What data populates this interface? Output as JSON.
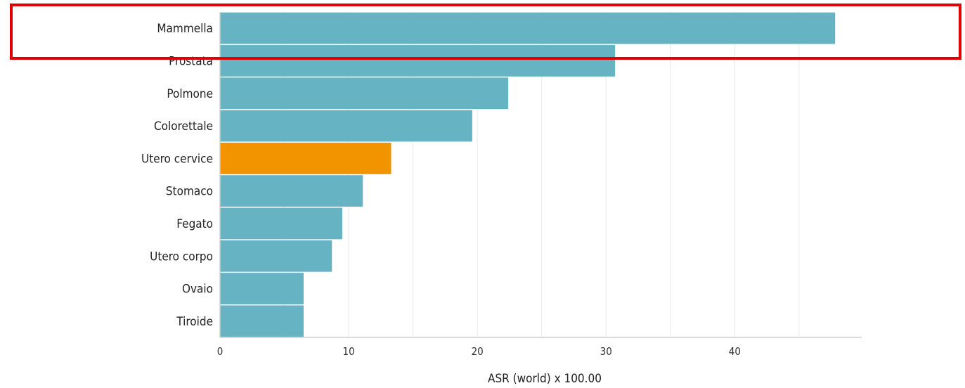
{
  "chart_data": {
    "type": "bar",
    "orientation": "horizontal",
    "categories": [
      "Mammella",
      "Prostata",
      "Polmone",
      "Colorettale",
      "Utero cervice",
      "Stomaco",
      "Fegato",
      "Utero corpo",
      "Ovaio",
      "Tiroide"
    ],
    "values": [
      47.8,
      30.7,
      22.4,
      19.6,
      13.3,
      11.1,
      9.5,
      8.7,
      6.5,
      6.5
    ],
    "highlight_index": 4,
    "xlabel": "ASR (world) x 100.00",
    "xlim": [
      0,
      48.5
    ],
    "x_ticks": [
      0,
      10,
      20,
      30,
      40
    ],
    "grid": true,
    "bar_color": "#66b4c3",
    "highlight_color": "#f29400"
  },
  "annotation": {
    "type": "highlight-box",
    "target_category": "Mammella",
    "color": "#e00000"
  }
}
